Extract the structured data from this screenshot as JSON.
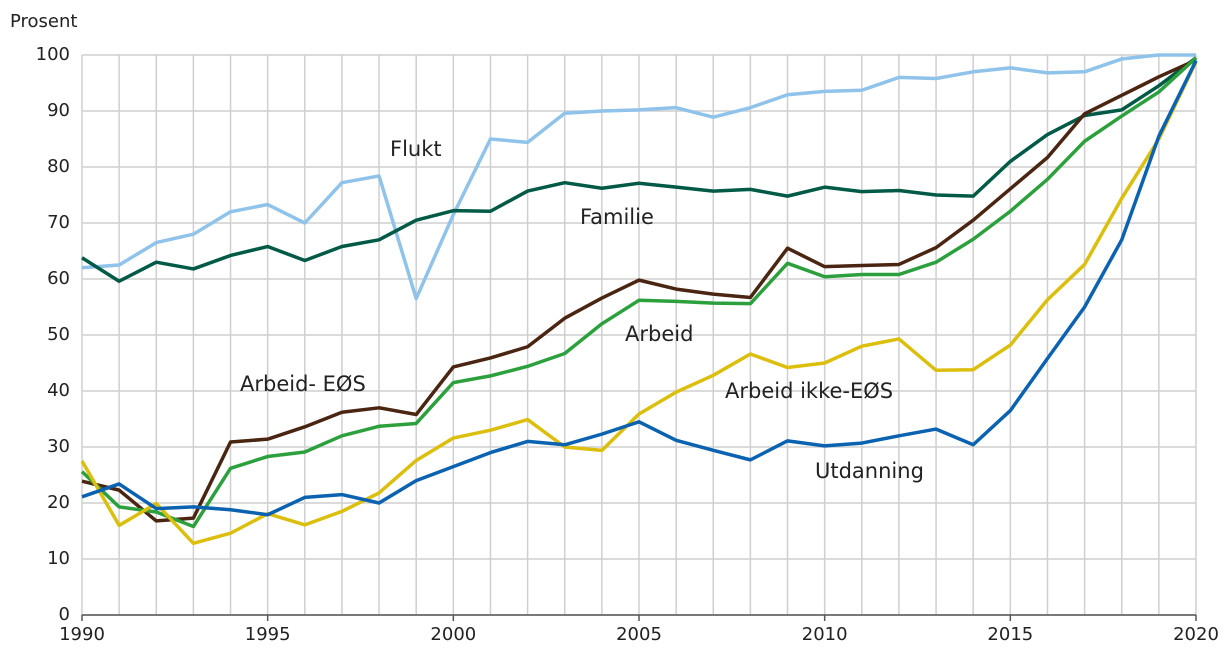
{
  "chart_data": {
    "type": "line",
    "y_axis_label": "Prosent",
    "x": [
      1990,
      1991,
      1992,
      1993,
      1994,
      1995,
      1996,
      1997,
      1998,
      1999,
      2000,
      2001,
      2002,
      2003,
      2004,
      2005,
      2006,
      2007,
      2008,
      2009,
      2010,
      2011,
      2012,
      2013,
      2014,
      2015,
      2016,
      2017,
      2018,
      2019,
      2020
    ],
    "xlim": [
      1990,
      2020
    ],
    "xticks": [
      1990,
      1995,
      2000,
      2005,
      2010,
      2015,
      2020
    ],
    "ylim": [
      0,
      100
    ],
    "yticks": [
      0,
      10,
      20,
      30,
      40,
      50,
      60,
      70,
      80,
      90,
      100
    ],
    "grid": true,
    "series": [
      {
        "name": "Flukt",
        "color": "#8fc3ea",
        "values": [
          62,
          62.5,
          66.5,
          68,
          72,
          73.3,
          70,
          77.2,
          78.4,
          56.5,
          71.5,
          85,
          84.4,
          89.6,
          90,
          90.2,
          90.6,
          88.9,
          90.6,
          92.9,
          93.5,
          93.7,
          96,
          95.8,
          97,
          97.7,
          96.8,
          97,
          99.3,
          100,
          100
        ]
      },
      {
        "name": "Familie",
        "color": "#005a46",
        "values": [
          63.8,
          59.6,
          63,
          61.8,
          64.2,
          65.8,
          63.3,
          65.8,
          67,
          70.5,
          72.2,
          72.1,
          75.7,
          77.2,
          76.2,
          77.1,
          76.4,
          75.7,
          76,
          74.8,
          76.4,
          75.6,
          75.8,
          75,
          74.8,
          81,
          85.8,
          89.2,
          90.2,
          94.5,
          99.5
        ]
      },
      {
        "name": "Arbeid- EØS",
        "color": "#4a2511",
        "values": [
          23.9,
          22.3,
          16.8,
          17.3,
          30.9,
          31.4,
          33.6,
          36.2,
          37,
          35.8,
          44.3,
          45.9,
          47.9,
          53,
          56.6,
          59.8,
          58.2,
          57.3,
          56.7,
          65.5,
          62.2,
          62.4,
          62.6,
          65.6,
          70.5,
          76.1,
          81.7,
          89.5,
          92.8,
          96.1,
          99.1
        ]
      },
      {
        "name": "Arbeid",
        "color": "#2da03e",
        "values": [
          25.6,
          19.3,
          18.4,
          15.8,
          26.2,
          28.3,
          29.1,
          32,
          33.7,
          34.2,
          41.5,
          42.7,
          44.4,
          46.7,
          52,
          56.2,
          56,
          55.7,
          55.6,
          62.8,
          60.4,
          60.8,
          60.8,
          63,
          67.1,
          72.1,
          77.8,
          84.6,
          89.1,
          93.4,
          99.5
        ]
      },
      {
        "name": "Arbeid ikke-EØS",
        "color": "#dcbe0c",
        "values": [
          27.5,
          16,
          19.9,
          12.8,
          14.6,
          18.1,
          16.1,
          18.5,
          21.8,
          27.6,
          31.6,
          33,
          34.9,
          30,
          29.4,
          35.9,
          39.8,
          42.8,
          46.6,
          44.2,
          45,
          48,
          49.3,
          43.7,
          43.8,
          48.2,
          56.3,
          62.6,
          74.4,
          85,
          98.8
        ]
      },
      {
        "name": "Utdanning",
        "color": "#0a62b0",
        "values": [
          21.1,
          23.4,
          19,
          19.3,
          18.8,
          17.9,
          21,
          21.5,
          20,
          24,
          26.5,
          29,
          31,
          30.4,
          32.3,
          34.5,
          31.2,
          29.4,
          27.7,
          31.1,
          30.2,
          30.7,
          32,
          33.2,
          30.4,
          36.5,
          45.8,
          55,
          67,
          85.5,
          99
        ]
      }
    ]
  }
}
